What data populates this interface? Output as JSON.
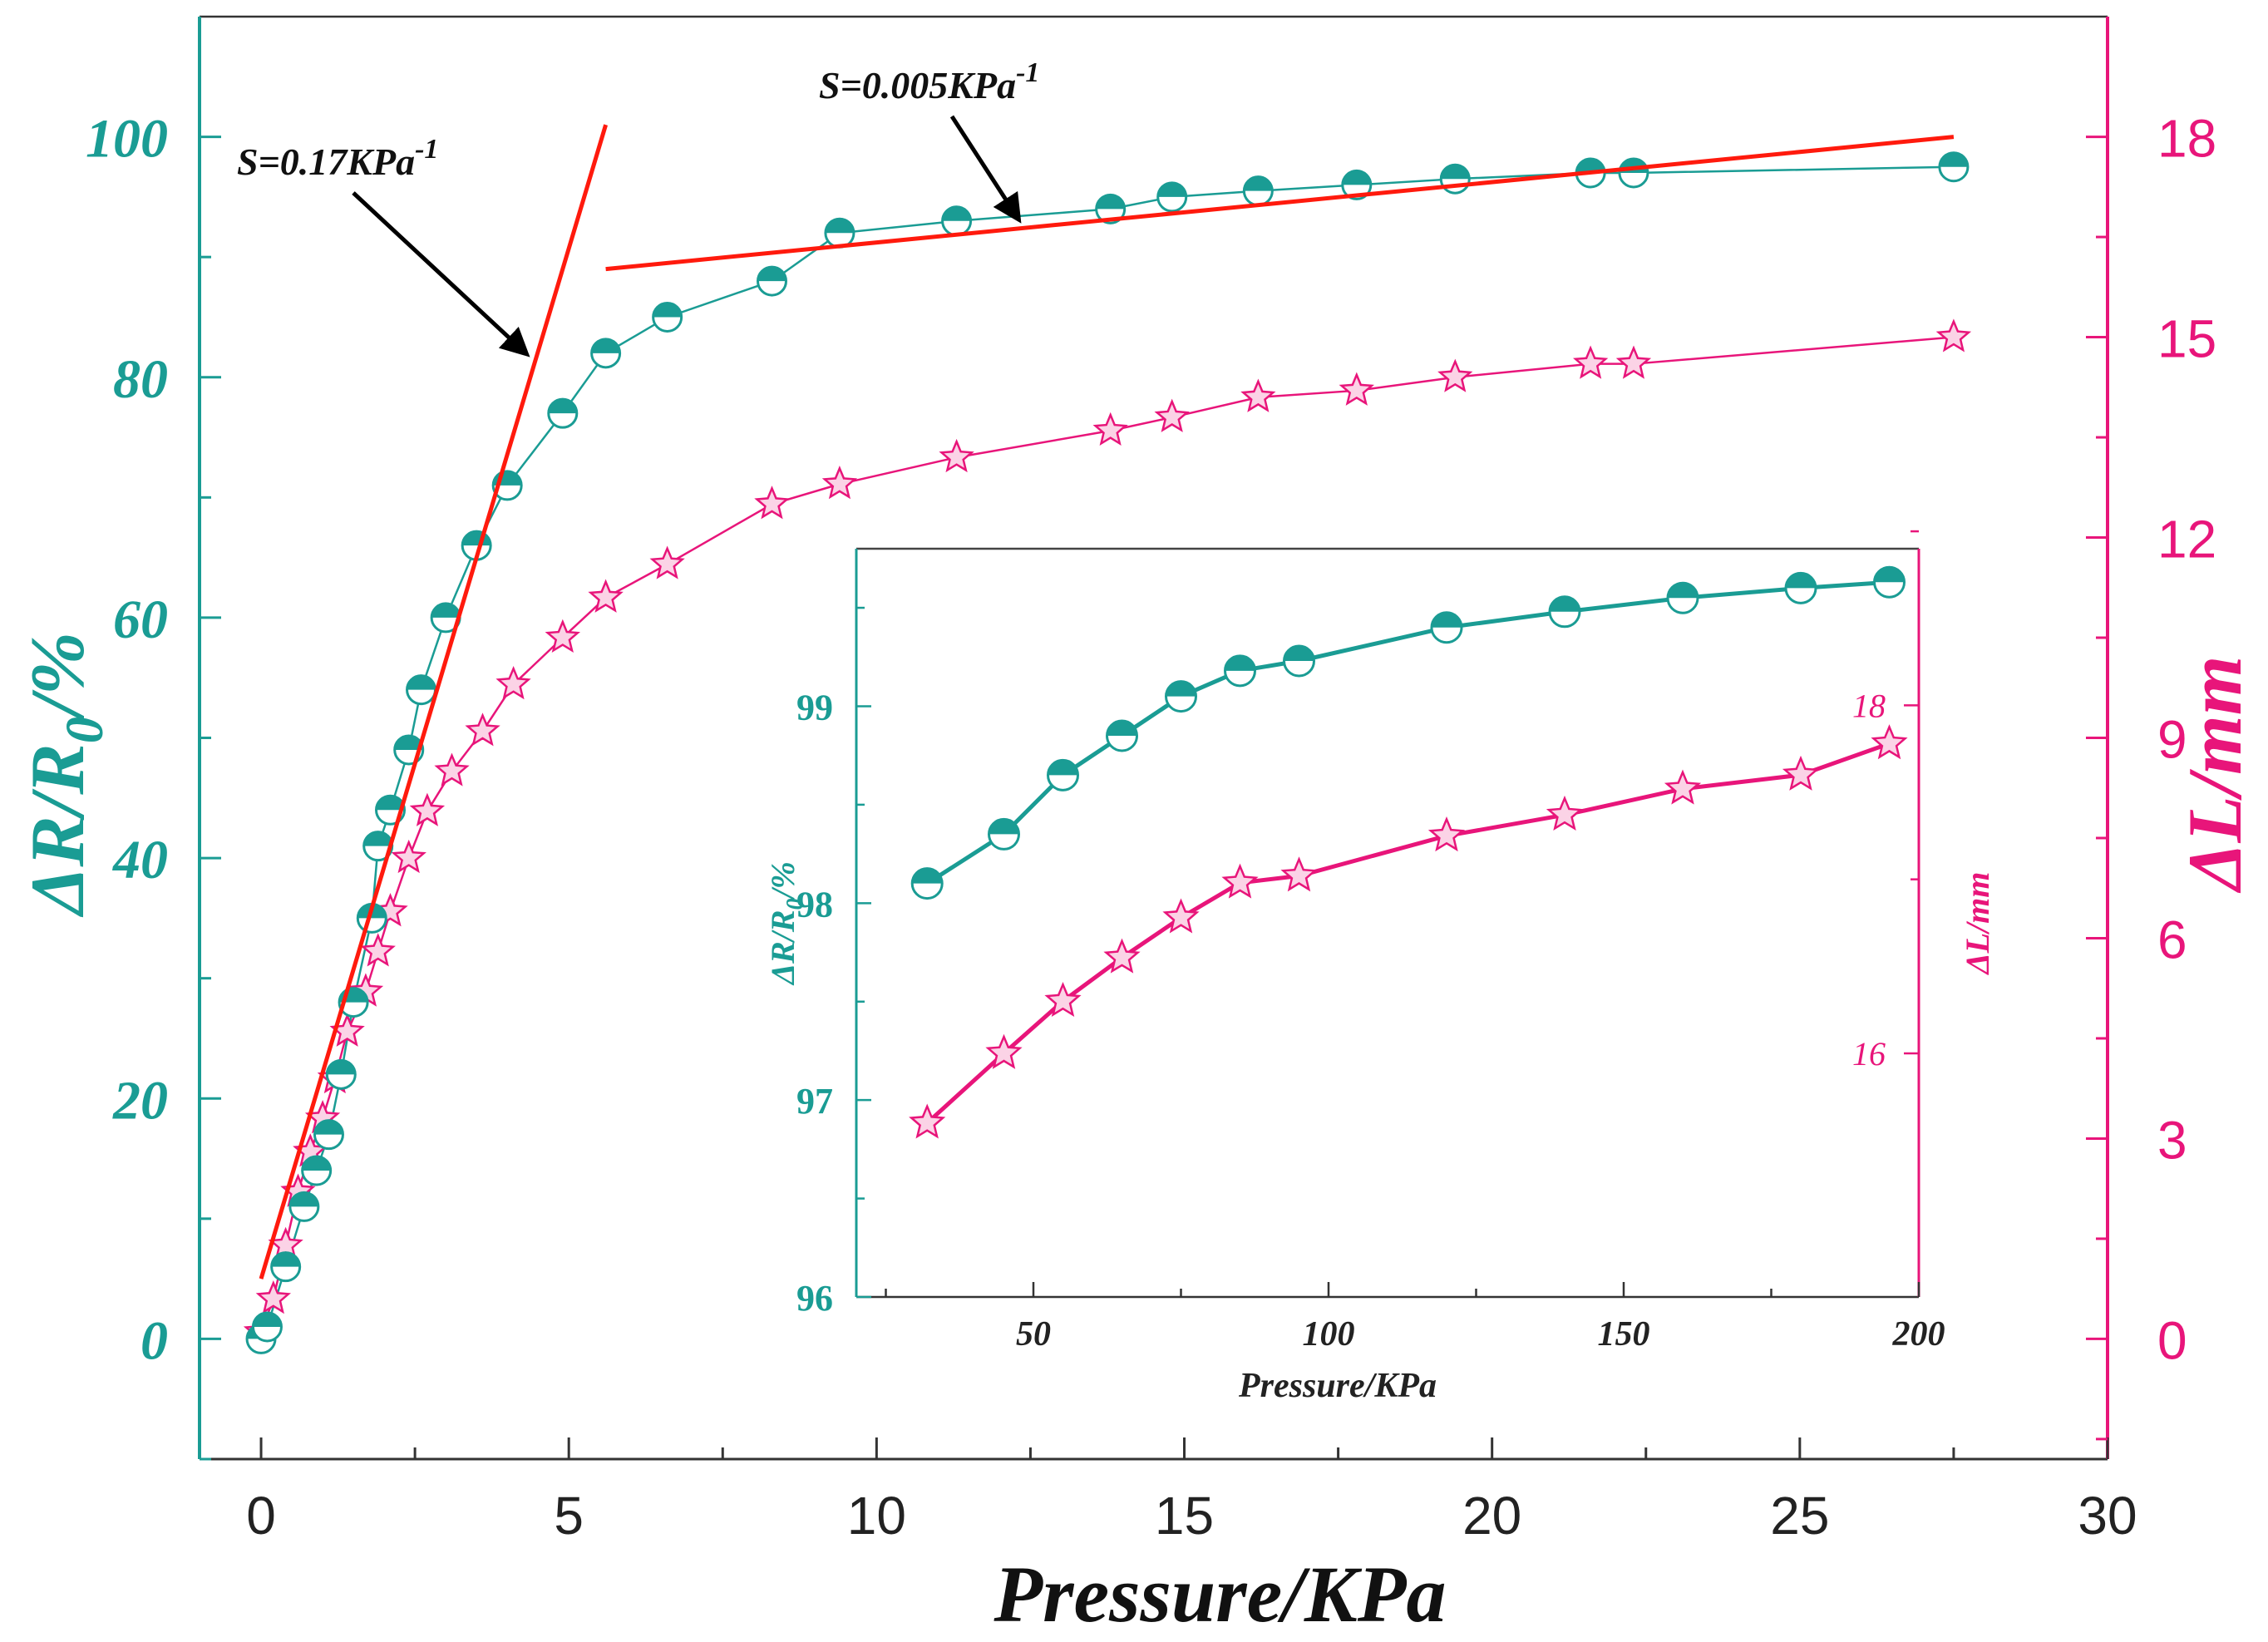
{
  "chart_data": {
    "type": "line",
    "colors": {
      "teal": "#1a9c94",
      "pink": "#e8157a",
      "fit": "#ff1a0d",
      "arrow": "#000000",
      "axis": "#222222"
    },
    "main": {
      "xlabel": "Pressure/KPa",
      "ylabel_left": "ΔR/R0/%",
      "ylabel_right": "ΔL/mm",
      "xlim": [
        -1,
        30
      ],
      "ylim_left": [
        -10,
        110
      ],
      "ylim_right": [
        -1.8,
        19.8
      ],
      "xticks": [
        0,
        5,
        10,
        15,
        20,
        25,
        30
      ],
      "xtick_labels": [
        "0",
        "5",
        "10",
        "15",
        "20",
        "25",
        "30"
      ],
      "yticks_left": [
        0,
        20,
        40,
        60,
        80,
        100
      ],
      "ytick_labels_left": [
        "0",
        "20",
        "40",
        "60",
        "80",
        "100"
      ],
      "yticks_right": [
        0,
        3,
        6,
        9,
        12,
        15,
        18
      ],
      "ytick_labels_right": [
        "0",
        "3",
        "6",
        "9",
        "12",
        "15",
        "18"
      ],
      "series": [
        {
          "name": "ΔR/R0",
          "axis": "left",
          "marker": "half-circle",
          "x": [
            0,
            0.1,
            0.4,
            0.7,
            0.9,
            1.1,
            1.3,
            1.5,
            1.8,
            1.9,
            2.1,
            2.4,
            2.6,
            3.0,
            3.5,
            4.0,
            4.9,
            5.6,
            6.6,
            8.3,
            9.4,
            11.3,
            13.8,
            14.8,
            16.2,
            17.8,
            19.4,
            21.6,
            22.3,
            27.5
          ],
          "y": [
            0,
            1,
            6,
            11,
            14,
            17,
            22,
            28,
            35,
            41,
            44,
            49,
            54,
            60,
            66,
            71,
            77,
            82,
            85,
            88,
            92,
            93,
            94,
            95,
            95.5,
            96,
            96.5,
            97,
            97,
            97.5
          ]
        },
        {
          "name": "ΔL",
          "axis": "right",
          "marker": "star",
          "x": [
            0,
            0.2,
            0.4,
            0.6,
            0.8,
            1.0,
            1.2,
            1.4,
            1.7,
            1.9,
            2.1,
            2.4,
            2.7,
            3.1,
            3.6,
            4.1,
            4.9,
            5.6,
            6.6,
            8.3,
            9.4,
            11.3,
            13.8,
            14.8,
            16.2,
            17.8,
            19.4,
            21.6,
            22.3,
            27.5
          ],
          "y": [
            0.1,
            0.6,
            1.4,
            2.2,
            2.8,
            3.3,
            3.9,
            4.6,
            5.2,
            5.8,
            6.4,
            7.2,
            7.9,
            8.5,
            9.1,
            9.8,
            10.5,
            11.1,
            11.6,
            12.5,
            12.8,
            13.2,
            13.6,
            13.8,
            14.1,
            14.2,
            14.4,
            14.6,
            14.6,
            15.0
          ]
        }
      ],
      "fit_lines": [
        {
          "name": "S=0.17KPa^-1",
          "x": [
            0,
            5.6
          ],
          "y": [
            5,
            101
          ]
        },
        {
          "name": "S=0.005KPa^-1",
          "x": [
            5.6,
            27.5
          ],
          "y": [
            89,
            100
          ]
        }
      ],
      "annotations": [
        {
          "base": "S=0.17KPa",
          "sup": "-1",
          "target": [
            4.3,
            82
          ]
        },
        {
          "base": "S=0.005KPa",
          "sup": "-1",
          "target": [
            12.3,
            93.2
          ]
        }
      ]
    },
    "inset": {
      "xlabel": "Pressure/KPa",
      "ylabel_left": "ΔR/R0/%",
      "ylabel_right": "ΔL/mm",
      "xlim": [
        20,
        200
      ],
      "ylim_left": [
        96,
        99.8
      ],
      "ylim_right": [
        14.6,
        18.9
      ],
      "xticks": [
        50,
        100,
        150,
        200
      ],
      "xtick_labels": [
        "50",
        "100",
        "150",
        "200"
      ],
      "yticks_left": [
        96,
        97,
        98,
        99
      ],
      "ytick_labels_left": [
        "96",
        "97",
        "98",
        "99"
      ],
      "yticks_right": [
        16,
        18
      ],
      "ytick_labels_right": [
        "16",
        "18"
      ],
      "series": [
        {
          "name": "ΔR/R0",
          "axis": "left",
          "marker": "half-circle",
          "x": [
            32,
            45,
            55,
            65,
            75,
            85,
            95,
            120,
            140,
            160,
            180,
            195
          ],
          "y": [
            98.1,
            98.35,
            98.65,
            98.85,
            99.05,
            99.18,
            99.23,
            99.4,
            99.48,
            99.55,
            99.6,
            99.63
          ]
        },
        {
          "name": "ΔL",
          "axis": "right",
          "marker": "star",
          "x": [
            32,
            45,
            55,
            65,
            75,
            85,
            95,
            120,
            140,
            160,
            180,
            195
          ],
          "y": [
            15.6,
            16.0,
            16.3,
            16.55,
            16.78,
            16.98,
            17.02,
            17.25,
            17.37,
            17.52,
            17.6,
            17.78
          ]
        }
      ]
    }
  }
}
